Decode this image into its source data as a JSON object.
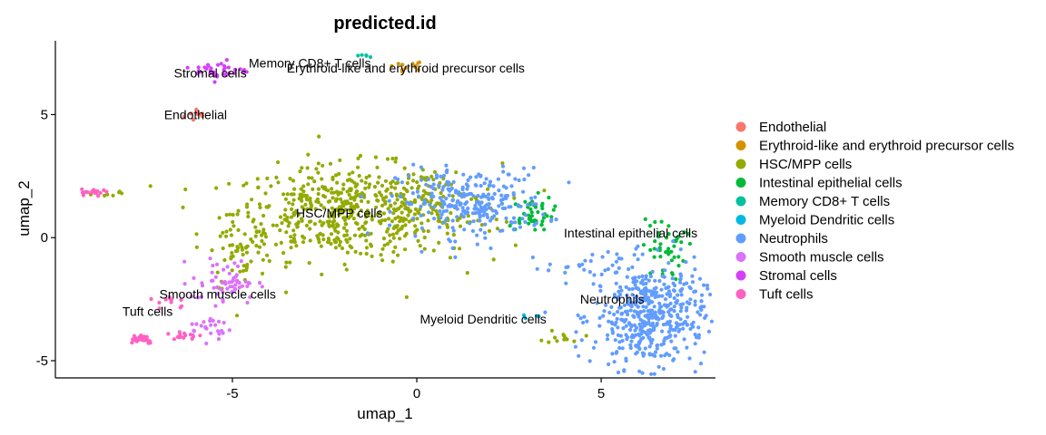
{
  "chart_data": {
    "type": "scatter",
    "title": "predicted.id",
    "xlabel": "umap_1",
    "ylabel": "umap_2",
    "xlim": [
      -9.8,
      8.1
    ],
    "ylim": [
      -5.7,
      8.0
    ],
    "xticks": [
      -5,
      0,
      5
    ],
    "yticks": [
      -5,
      0,
      5
    ],
    "xtick_labels": [
      "-5",
      "0",
      "5"
    ],
    "ytick_labels": [
      "-5",
      "0",
      "5"
    ],
    "legend_position": "right",
    "grid": false,
    "series": [
      {
        "name": "Endothelial",
        "color": "#F8766D",
        "clusters": [
          {
            "cx": -5.9,
            "cy": 5.0,
            "sx": 0.2,
            "sy": 0.15,
            "n": 10
          }
        ],
        "label": {
          "text": "Endothelial",
          "x": -6.0,
          "y": 5.0
        }
      },
      {
        "name": "Erythroid-like and erythroid precursor cells",
        "color": "#D39200",
        "clusters": [
          {
            "cx": -0.3,
            "cy": 7.0,
            "sx": 0.3,
            "sy": 0.1,
            "n": 12
          }
        ],
        "label": {
          "text": "Erythroid-like and erythroid precursor cells",
          "x": -0.3,
          "y": 6.9
        }
      },
      {
        "name": "HSC/MPP cells",
        "color": "#93AA00",
        "clusters": [
          {
            "cx": -2.0,
            "cy": 1.0,
            "sx": 1.5,
            "sy": 0.95,
            "n": 500
          },
          {
            "cx": 0.3,
            "cy": 1.2,
            "sx": 1.0,
            "sy": 0.9,
            "n": 120
          },
          {
            "cx": -4.8,
            "cy": -0.6,
            "sx": 0.4,
            "sy": 0.9,
            "n": 50
          },
          {
            "cx": -8.3,
            "cy": 1.8,
            "sx": 0.25,
            "sy": 0.08,
            "n": 8
          },
          {
            "cx": 4.0,
            "cy": -4.0,
            "sx": 0.25,
            "sy": 0.15,
            "n": 12
          }
        ],
        "label": {
          "text": "HSC/MPP cells",
          "x": -2.1,
          "y": 1.0
        }
      },
      {
        "name": "Intestinal epithelial cells",
        "color": "#00BA38",
        "clusters": [
          {
            "cx": 3.1,
            "cy": 1.0,
            "sx": 0.3,
            "sy": 0.35,
            "n": 50
          },
          {
            "cx": 6.7,
            "cy": -0.5,
            "sx": 0.3,
            "sy": 0.65,
            "n": 45
          }
        ],
        "label": {
          "text": "Intestinal epithelial cells",
          "x": 5.8,
          "y": 0.2
        }
      },
      {
        "name": "Memory CD8+ T cells",
        "color": "#00C19F",
        "clusters": [
          {
            "cx": -1.4,
            "cy": 7.4,
            "sx": 0.1,
            "sy": 0.05,
            "n": 5
          }
        ],
        "label": {
          "text": "Memory CD8+ T cells",
          "x": -2.9,
          "y": 7.1
        }
      },
      {
        "name": "Myeloid Dendritic cells",
        "color": "#00B9E3",
        "clusters": [
          {
            "cx": 3.1,
            "cy": -3.2,
            "sx": 0.12,
            "sy": 0.08,
            "n": 4
          }
        ],
        "label": {
          "text": "Myeloid Dendritic cells",
          "x": 1.8,
          "y": -3.3
        }
      },
      {
        "name": "Neutrophils",
        "color": "#619CFF",
        "clusters": [
          {
            "cx": 1.5,
            "cy": 1.4,
            "sx": 1.0,
            "sy": 0.7,
            "n": 260
          },
          {
            "cx": 6.3,
            "cy": -3.2,
            "sx": 0.75,
            "sy": 1.05,
            "n": 480
          },
          {
            "cx": 4.7,
            "cy": -1.2,
            "sx": 0.6,
            "sy": 0.25,
            "n": 25
          }
        ],
        "label": {
          "text": "Neutrophils",
          "x": 5.3,
          "y": -2.5
        }
      },
      {
        "name": "Smooth muscle cells",
        "color": "#DB72FB",
        "clusters": [
          {
            "cx": -5.2,
            "cy": -1.8,
            "sx": 0.45,
            "sy": 0.45,
            "n": 60
          },
          {
            "cx": -5.6,
            "cy": -3.7,
            "sx": 0.3,
            "sy": 0.25,
            "n": 25
          }
        ],
        "label": {
          "text": "Smooth muscle cells",
          "x": -5.4,
          "y": -2.3
        }
      },
      {
        "name": "Stromal cells",
        "color": "#D440FA",
        "clusters": [
          {
            "cx": -5.3,
            "cy": 6.8,
            "sx": 0.35,
            "sy": 0.2,
            "n": 35
          }
        ],
        "label": {
          "text": "Stromal cells",
          "x": -5.6,
          "y": 6.7
        }
      },
      {
        "name": "Tuft cells",
        "color": "#FF61C3",
        "clusters": [
          {
            "cx": -7.5,
            "cy": -4.1,
            "sx": 0.2,
            "sy": 0.1,
            "n": 30
          },
          {
            "cx": -6.3,
            "cy": -4.0,
            "sx": 0.25,
            "sy": 0.1,
            "n": 15
          },
          {
            "cx": -6.7,
            "cy": -2.6,
            "sx": 0.25,
            "sy": 0.2,
            "n": 10
          },
          {
            "cx": -8.7,
            "cy": 1.85,
            "sx": 0.2,
            "sy": 0.06,
            "n": 20
          }
        ],
        "label": {
          "text": "Tuft cells",
          "x": -7.3,
          "y": -3.0
        }
      }
    ]
  }
}
